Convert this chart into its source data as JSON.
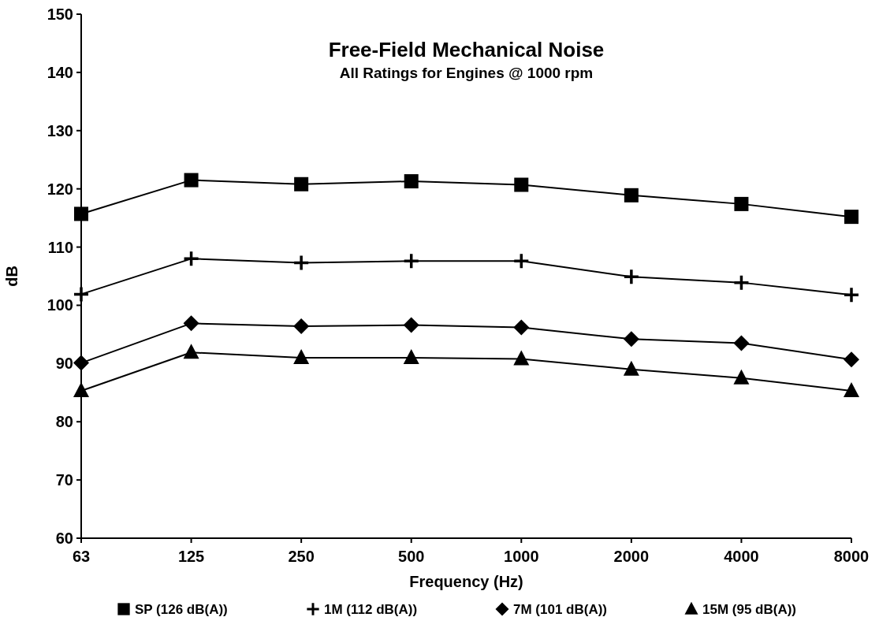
{
  "chart_data": {
    "type": "line",
    "title": "Free-Field Mechanical Noise",
    "subtitle": "All Ratings for Engines @ 1000 rpm",
    "xlabel": "Frequency (Hz)",
    "ylabel": "dB",
    "categories": [
      "63",
      "125",
      "250",
      "500",
      "1000",
      "2000",
      "4000",
      "8000"
    ],
    "series": [
      {
        "name": "SP (126 dB(A))",
        "color": "#000000",
        "marker": "square",
        "values": [
          115.7,
          121.5,
          120.8,
          121.3,
          120.7,
          118.9,
          117.4,
          115.2
        ]
      },
      {
        "name": "1M (112 dB(A))",
        "color": "#000000",
        "marker": "cross",
        "values": [
          101.9,
          108.0,
          107.3,
          107.6,
          107.6,
          104.9,
          103.9,
          101.8
        ]
      },
      {
        "name": "7M (101 dB(A))",
        "color": "#000000",
        "marker": "diamond",
        "values": [
          90.1,
          96.9,
          96.4,
          96.6,
          96.2,
          94.2,
          93.5,
          90.7
        ]
      },
      {
        "name": "15M (95 dB(A))",
        "color": "#000000",
        "marker": "triangle",
        "values": [
          85.3,
          91.9,
          91.0,
          91.0,
          90.8,
          89.0,
          87.5,
          85.3
        ]
      }
    ],
    "ylim": [
      60,
      150
    ],
    "yticks": [
      60,
      70,
      80,
      90,
      100,
      110,
      120,
      130,
      140,
      150
    ],
    "grid": false,
    "legend": "bottom",
    "line_style": "solid"
  }
}
